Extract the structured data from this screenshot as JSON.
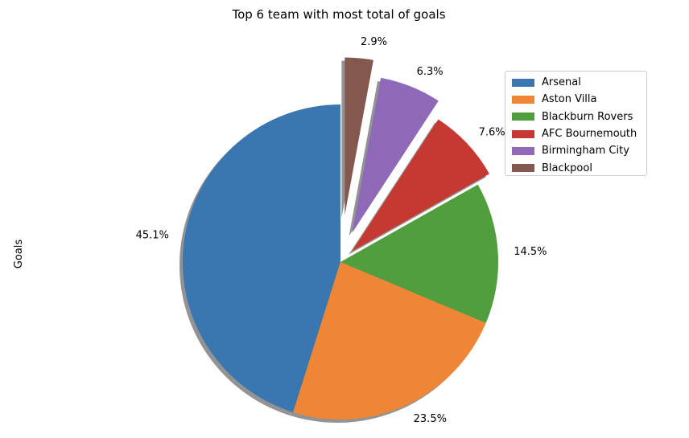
{
  "chart_data": {
    "type": "pie",
    "title": "Top 6 team with most total of goals",
    "ylabel": "Goals",
    "slices": [
      {
        "label": "Arsenal",
        "percent": 45.1,
        "color": "#3a76af",
        "explode": 0.0
      },
      {
        "label": "Aston Villa",
        "percent": 23.5,
        "color": "#ef8636",
        "explode": 0.0
      },
      {
        "label": "Blackburn Rovers",
        "percent": 14.5,
        "color": "#519e3e",
        "explode": 0.0
      },
      {
        "label": "AFC Bournemouth",
        "percent": 7.6,
        "color": "#c53932",
        "explode": 0.1
      },
      {
        "label": "Birmingham City",
        "percent": 6.3,
        "color": "#8d69b8",
        "explode": 0.2
      },
      {
        "label": "Blackpool",
        "percent": 2.9,
        "color": "#84584e",
        "explode": 0.3
      }
    ],
    "start_angle_deg": 90,
    "direction": "counterclockwise",
    "shadow": true,
    "legend_position": "top-right"
  }
}
